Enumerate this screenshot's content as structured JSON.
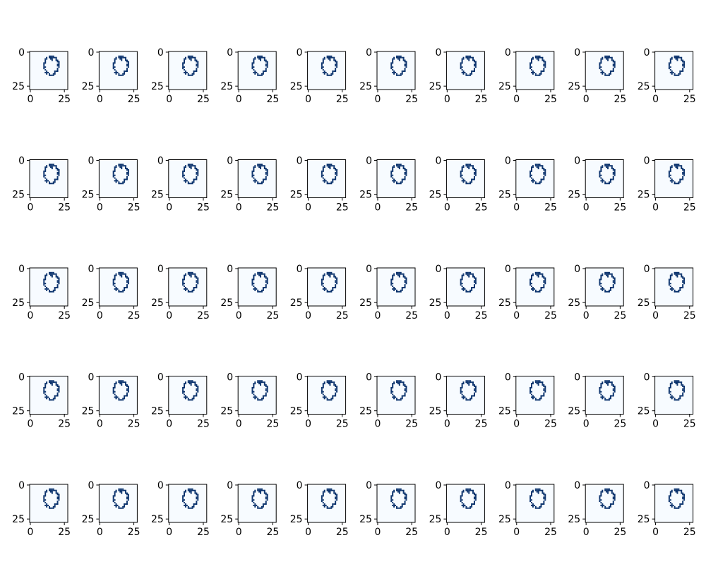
{
  "chart_data": {
    "type": "heatmap",
    "grid_rows": 5,
    "grid_cols": 10,
    "image_size": 28,
    "colormap": [
      "#f7fbff",
      "#08306b"
    ],
    "x_ticks": [
      0,
      25
    ],
    "y_ticks": [
      0,
      25
    ],
    "x_tick_labels": [
      "0",
      "25"
    ],
    "y_tick_labels": [
      "0",
      "25"
    ],
    "shared_binary_mask_rows": [
      "............................",
      "............................",
      "............................",
      "..............xxxx..........",
      "............x.xxxxxx........",
      "...........xx..xx..x........",
      "...........x....x..xx.......",
      "...........x........xx......",
      "..........xx.........x......",
      "..........x.........xx......",
      "..........x.........xx......",
      "..........xx.........x......",
      "..........x.........x.......",
      "...........x........x.......",
      "............x.....xxx.......",
      "...........xxx....x.........",
      "............x.x..xx.........",
      "..............xxxx..........",
      "............................",
      "............................",
      "............................",
      "............................",
      "............................",
      "............................",
      "............................",
      "............................",
      "............................",
      "............................"
    ],
    "panels": [
      {
        "row": 0,
        "col": 0
      },
      {
        "row": 0,
        "col": 1
      },
      {
        "row": 0,
        "col": 2
      },
      {
        "row": 0,
        "col": 3
      },
      {
        "row": 0,
        "col": 4
      },
      {
        "row": 0,
        "col": 5
      },
      {
        "row": 0,
        "col": 6
      },
      {
        "row": 0,
        "col": 7
      },
      {
        "row": 0,
        "col": 8
      },
      {
        "row": 0,
        "col": 9
      },
      {
        "row": 1,
        "col": 0
      },
      {
        "row": 1,
        "col": 1
      },
      {
        "row": 1,
        "col": 2
      },
      {
        "row": 1,
        "col": 3
      },
      {
        "row": 1,
        "col": 4
      },
      {
        "row": 1,
        "col": 5
      },
      {
        "row": 1,
        "col": 6
      },
      {
        "row": 1,
        "col": 7
      },
      {
        "row": 1,
        "col": 8
      },
      {
        "row": 1,
        "col": 9
      },
      {
        "row": 2,
        "col": 0
      },
      {
        "row": 2,
        "col": 1
      },
      {
        "row": 2,
        "col": 2
      },
      {
        "row": 2,
        "col": 3
      },
      {
        "row": 2,
        "col": 4
      },
      {
        "row": 2,
        "col": 5
      },
      {
        "row": 2,
        "col": 6
      },
      {
        "row": 2,
        "col": 7
      },
      {
        "row": 2,
        "col": 8
      },
      {
        "row": 2,
        "col": 9
      },
      {
        "row": 3,
        "col": 0
      },
      {
        "row": 3,
        "col": 1
      },
      {
        "row": 3,
        "col": 2
      },
      {
        "row": 3,
        "col": 3
      },
      {
        "row": 3,
        "col": 4
      },
      {
        "row": 3,
        "col": 5
      },
      {
        "row": 3,
        "col": 6
      },
      {
        "row": 3,
        "col": 7
      },
      {
        "row": 3,
        "col": 8
      },
      {
        "row": 3,
        "col": 9
      },
      {
        "row": 4,
        "col": 0
      },
      {
        "row": 4,
        "col": 1
      },
      {
        "row": 4,
        "col": 2
      },
      {
        "row": 4,
        "col": 3
      },
      {
        "row": 4,
        "col": 4
      },
      {
        "row": 4,
        "col": 5
      },
      {
        "row": 4,
        "col": 6
      },
      {
        "row": 4,
        "col": 7
      },
      {
        "row": 4,
        "col": 8
      },
      {
        "row": 4,
        "col": 9
      }
    ],
    "grid": false
  }
}
